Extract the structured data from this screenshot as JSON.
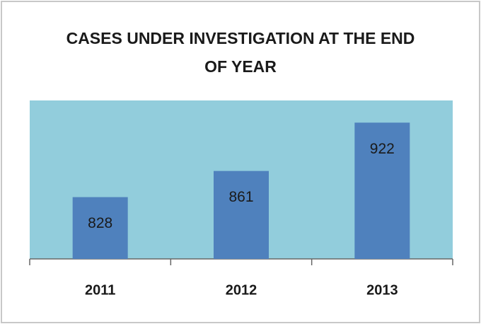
{
  "chart_data": {
    "type": "bar",
    "title": "CASES UNDER INVESTIGATION AT THE END OF YEAR",
    "categories": [
      "2011",
      "2012",
      "2013"
    ],
    "values": [
      828,
      861,
      922
    ],
    "color": "#4f81bd",
    "plot_background": "#92cddc",
    "ylim": [
      750,
      950
    ]
  }
}
